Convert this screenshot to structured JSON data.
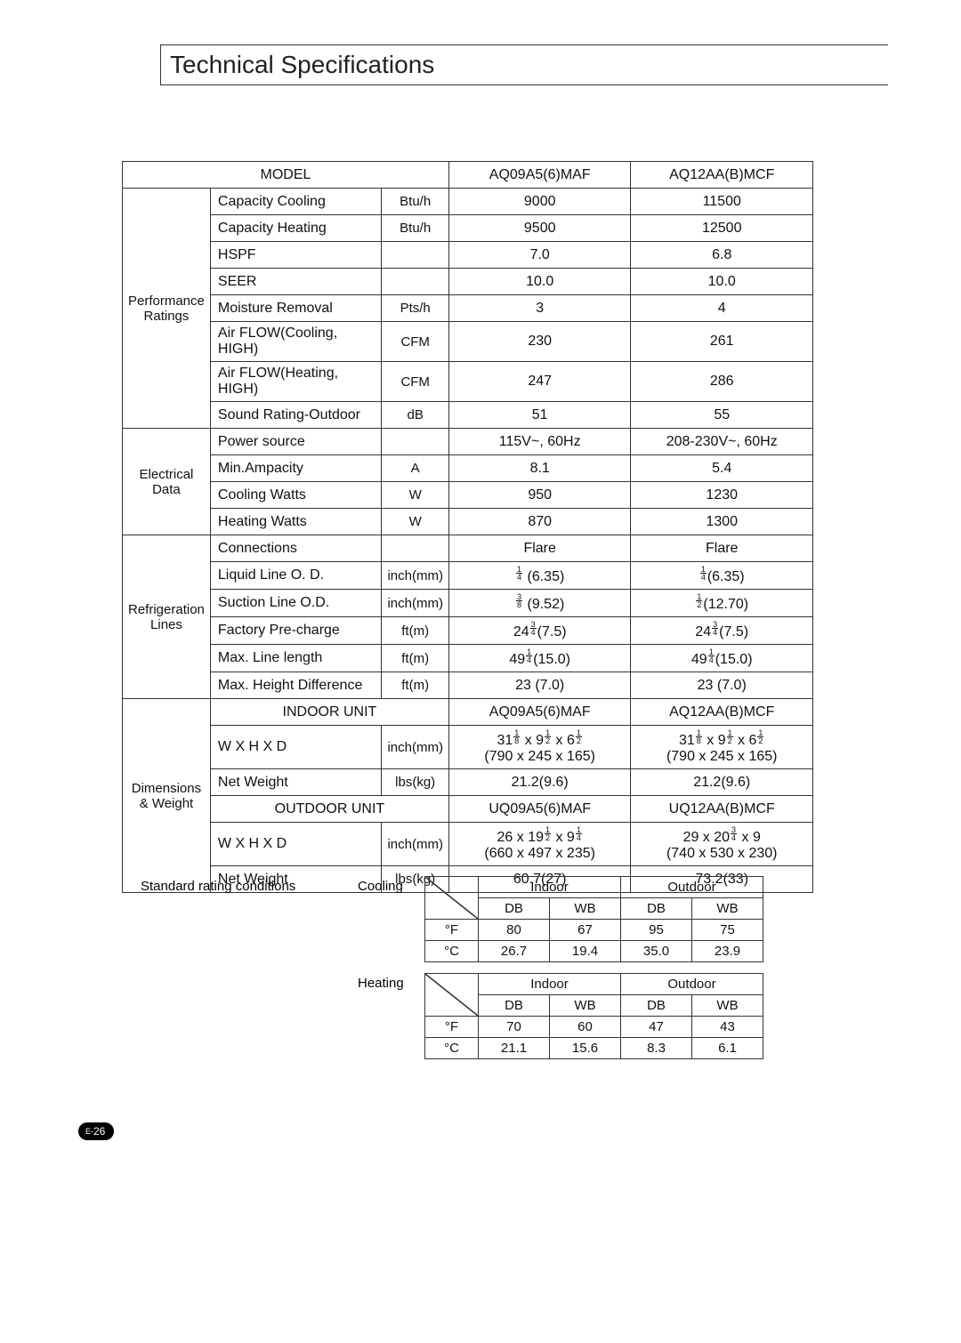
{
  "title": "Technical Specifications",
  "page_number_prefix": "E-",
  "page_number": "26",
  "main_table": {
    "model_label": "MODEL",
    "model_a": "AQ09A5(6)MAF",
    "model_b": "AQ12AA(B)MCF",
    "groups": [
      {
        "name": "Performance Ratings",
        "rows": [
          {
            "spec": "Capacity Cooling",
            "unit": "Btu/h",
            "a": "9000",
            "b": "11500"
          },
          {
            "spec": "Capacity Heating",
            "unit": "Btu/h",
            "a": "9500",
            "b": "12500"
          },
          {
            "spec": "HSPF",
            "unit": "",
            "a": "7.0",
            "b": "6.8"
          },
          {
            "spec": "SEER",
            "unit": "",
            "a": "10.0",
            "b": "10.0"
          },
          {
            "spec": "Moisture Removal",
            "unit": "Pts/h",
            "a": "3",
            "b": "4"
          },
          {
            "spec": "Air FLOW(Cooling, HIGH)",
            "unit": "CFM",
            "a": "230",
            "b": "261"
          },
          {
            "spec": "Air FLOW(Heating, HIGH)",
            "unit": "CFM",
            "a": "247",
            "b": "286"
          },
          {
            "spec": "Sound Rating-Outdoor",
            "unit": "dB",
            "a": "51",
            "b": "55"
          }
        ]
      },
      {
        "name": "Electrical Data",
        "rows": [
          {
            "spec": "Power source",
            "unit": "",
            "a": "115V~, 60Hz",
            "b": "208-230V~, 60Hz"
          },
          {
            "spec": "Min.Ampacity",
            "unit": "A",
            "a": "8.1",
            "b": "5.4"
          },
          {
            "spec": "Cooling Watts",
            "unit": "W",
            "a": "950",
            "b": "1230"
          },
          {
            "spec": "Heating Watts",
            "unit": "W",
            "a": "870",
            "b": "1300"
          }
        ]
      },
      {
        "name": "Refrigeration Lines",
        "rows": [
          {
            "spec": "Connections",
            "unit": "",
            "a": "Flare",
            "b": "Flare"
          },
          {
            "spec": "Liquid Line O. D.",
            "unit": "inch(mm)",
            "a_html": "frac_1_4 (6.35)",
            "b_html": "frac_1_4(6.35)"
          },
          {
            "spec": "Suction Line O.D.",
            "unit": "inch(mm)",
            "a_html": "frac_3_8 (9.52)",
            "b_html": "frac_1_2(12.70)"
          },
          {
            "spec": "Factory Pre-charge",
            "unit": "ft(m)",
            "a_html": "24frac_3_4(7.5)",
            "b_html": "24frac_3_4(7.5)"
          },
          {
            "spec": "Max. Line length",
            "unit": "ft(m)",
            "a_html": "49frac_1_4(15.0)",
            "b_html": "49frac_1_4(15.0)"
          },
          {
            "spec": "Max. Height Difference",
            "unit": "ft(m)",
            "a": "23 (7.0)",
            "b": "23 (7.0)"
          }
        ]
      }
    ],
    "dimensions": {
      "name": "Dimensions & Weight",
      "indoor_label": "INDOOR UNIT",
      "indoor_a": "AQ09A5(6)MAF",
      "indoor_b": "AQ12AA(B)MCF",
      "indoor_rows": [
        {
          "spec": "W X H X D",
          "unit": "inch(mm)",
          "a_l1_html": "31frac_1_8  x  9frac_1_2  x  6frac_1_2",
          "a_l2": "(790 x 245 x 165)",
          "b_l1_html": "31frac_1_8  x  9frac_1_2  x  6frac_1_2",
          "b_l2": "(790 x 245 x 165)"
        },
        {
          "spec": "Net Weight",
          "unit": "lbs(kg)",
          "a": "21.2(9.6)",
          "b": "21.2(9.6)"
        }
      ],
      "outdoor_label": "OUTDOOR UNIT",
      "outdoor_a": "UQ09A5(6)MAF",
      "outdoor_b": "UQ12AA(B)MCF",
      "outdoor_rows": [
        {
          "spec": "W X H X D",
          "unit": "inch(mm)",
          "a_l1_html": "26  x  19frac_1_2 x 9frac_1_4",
          "a_l2": "(660 x 497 x 235)",
          "b_l1_html": "29  x  20frac_3_4 x 9",
          "b_l2": "(740 x 530 x 230)"
        },
        {
          "spec": "Net Weight",
          "unit": "lbs(kg)",
          "a": "60.7(27)",
          "b": "73.2(33)"
        }
      ]
    }
  },
  "conditions": {
    "label": "Standard rating conditions",
    "cooling_label": "Cooling",
    "heating_label": "Heating",
    "headers": {
      "indoor": "Indoor",
      "outdoor": "Outdoor",
      "db": "DB",
      "wb": "WB",
      "f": "°F",
      "c": "°C"
    },
    "cooling": {
      "f": {
        "idb": "80",
        "iwb": "67",
        "odb": "95",
        "owb": "75"
      },
      "c": {
        "idb": "26.7",
        "iwb": "19.4",
        "odb": "35.0",
        "owb": "23.9"
      }
    },
    "heating": {
      "f": {
        "idb": "70",
        "iwb": "60",
        "odb": "47",
        "owb": "43"
      },
      "c": {
        "idb": "21.1",
        "iwb": "15.6",
        "odb": "8.3",
        "owb": "6.1"
      }
    }
  },
  "colors": {
    "text": "#111111",
    "border": "#333333",
    "background": "#ffffff",
    "pagenum_bg": "#000000",
    "pagenum_fg": "#ffffff"
  }
}
